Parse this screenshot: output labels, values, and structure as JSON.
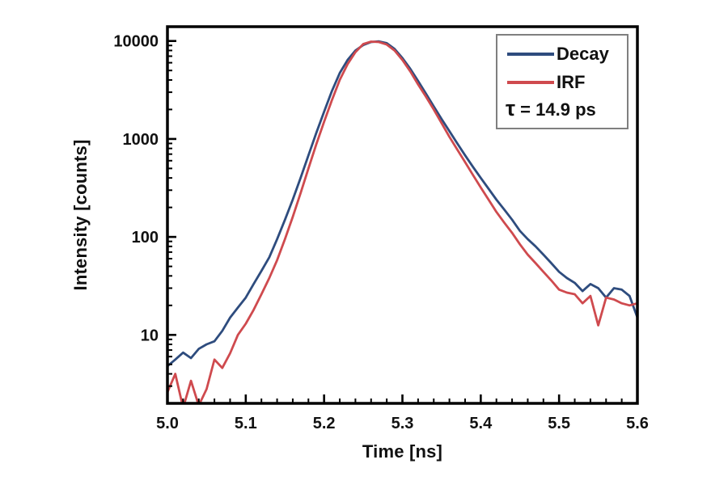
{
  "figure": {
    "background": "#ffffff"
  },
  "colors": {
    "decay": "#2e4c7e",
    "irf": "#cf4a4e",
    "frame": "#000000",
    "text": "#111111",
    "legend_border": "#7f7f7f"
  },
  "axes": {
    "x_label": "Time [ns]",
    "y_label": "Intensity [counts]",
    "x_major_ticks": [
      5.0,
      5.1,
      5.2,
      5.3,
      5.4,
      5.5,
      5.6
    ],
    "x_major_labels": [
      "5.0",
      "5.1",
      "5.2",
      "5.3",
      "5.4",
      "5.5",
      "5.6"
    ],
    "x_minor_step": 0.02,
    "y_major_ticks": [
      10,
      100,
      1000,
      10000
    ],
    "y_major_labels": [
      "10",
      "100",
      "1000",
      "10000"
    ]
  },
  "legend": {
    "decay_label": "Decay",
    "irf_label": "IRF",
    "tau_symbol": "τ",
    "tau_value": " = 14.9 ps"
  },
  "chart_data": {
    "type": "line",
    "title": "",
    "xlabel": "Time [ns]",
    "ylabel": "Intensity [counts]",
    "xlim": [
      5.0,
      5.6
    ],
    "ylim": [
      2,
      14000
    ],
    "yscale": "log",
    "grid": false,
    "legend_position": "top-right",
    "annotations": [
      {
        "text": "τ = 14.9 ps"
      }
    ],
    "x": [
      5.0,
      5.01,
      5.02,
      5.03,
      5.04,
      5.05,
      5.06,
      5.07,
      5.08,
      5.09,
      5.1,
      5.11,
      5.12,
      5.13,
      5.14,
      5.15,
      5.16,
      5.17,
      5.18,
      5.19,
      5.2,
      5.21,
      5.22,
      5.23,
      5.24,
      5.25,
      5.26,
      5.27,
      5.28,
      5.29,
      5.3,
      5.31,
      5.32,
      5.33,
      5.34,
      5.35,
      5.36,
      5.37,
      5.38,
      5.39,
      5.4,
      5.41,
      5.42,
      5.43,
      5.44,
      5.45,
      5.46,
      5.47,
      5.48,
      5.49,
      5.5,
      5.51,
      5.52,
      5.53,
      5.54,
      5.55,
      5.56,
      5.57,
      5.58,
      5.59,
      5.6
    ],
    "series": [
      {
        "name": "Decay",
        "color": "#2e4c7e",
        "values": [
          4.8,
          5.6,
          6.6,
          5.8,
          7.2,
          8.0,
          8.6,
          11,
          15,
          19,
          24,
          33,
          45,
          62,
          95,
          150,
          240,
          400,
          680,
          1150,
          1900,
          3100,
          4700,
          6400,
          8000,
          9100,
          9750,
          9900,
          9500,
          8300,
          6700,
          5200,
          3900,
          2900,
          2150,
          1600,
          1200,
          900,
          680,
          520,
          400,
          310,
          240,
          190,
          150,
          115,
          95,
          80,
          66,
          54,
          44,
          38,
          34,
          28,
          33,
          30,
          24,
          30,
          29,
          25,
          15
        ]
      },
      {
        "name": "IRF",
        "color": "#cf4a4e",
        "values": [
          2.6,
          4.0,
          1.8,
          3.4,
          1.9,
          2.8,
          5.6,
          4.6,
          6.5,
          10,
          13,
          18,
          26,
          38,
          58,
          95,
          160,
          280,
          500,
          880,
          1500,
          2500,
          4000,
          5800,
          7700,
          9300,
          9850,
          9750,
          9200,
          8000,
          6400,
          4900,
          3600,
          2700,
          2000,
          1450,
          1050,
          780,
          580,
          430,
          320,
          240,
          180,
          140,
          110,
          84,
          66,
          54,
          44,
          36,
          29,
          27,
          26,
          21,
          25,
          12.5,
          24,
          23,
          21,
          20,
          21
        ]
      }
    ]
  }
}
